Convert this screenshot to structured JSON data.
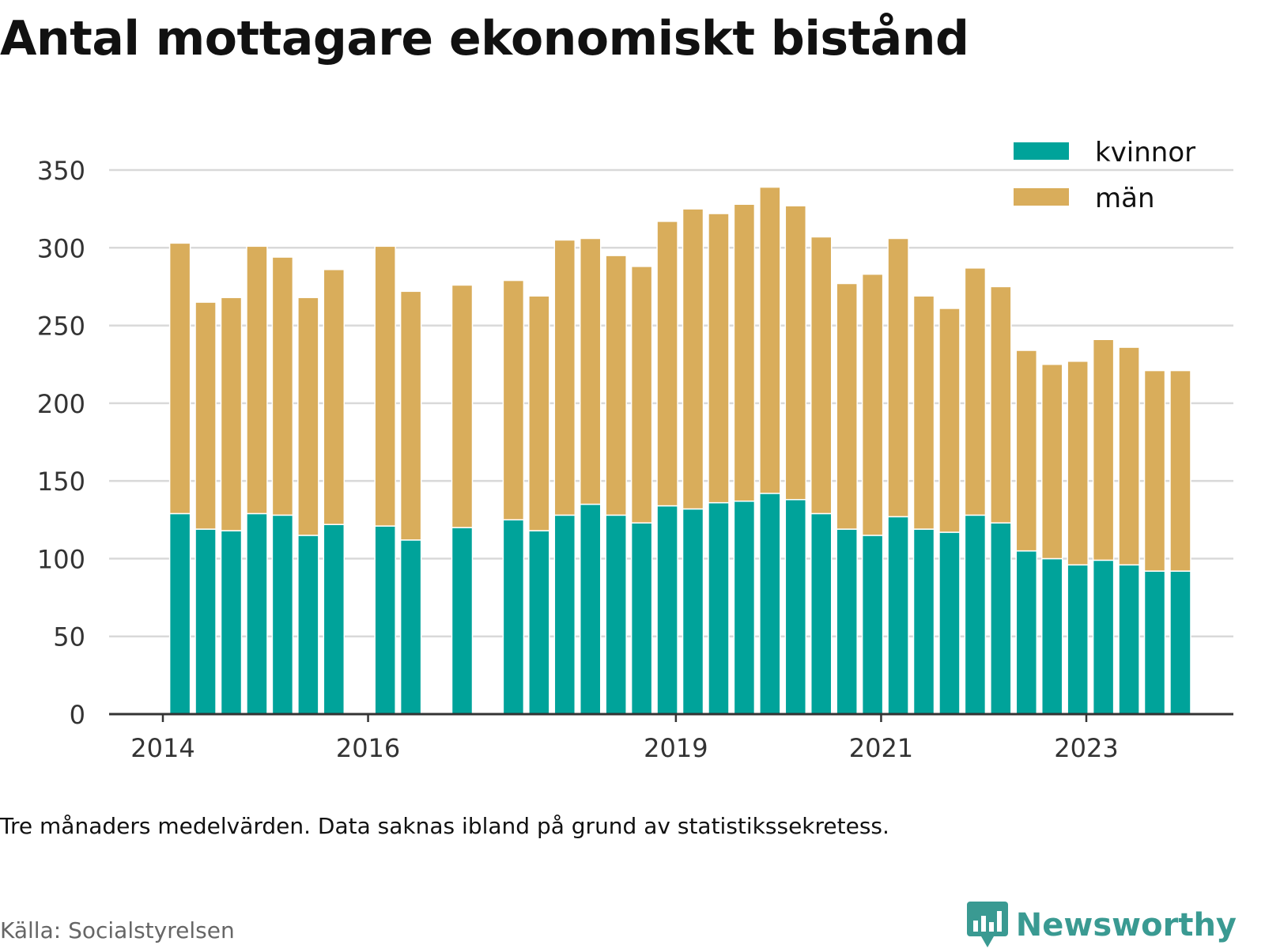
{
  "title": "Antal mottagare ekonomiskt bistånd",
  "note": "Tre månaders medelvärden. Data saknas ibland på grund av statistikssekretess.",
  "source": "Källa: Socialstyrelsen",
  "brand": "Newsworthy",
  "brand_icon": "newsworthy-chart-bubble-icon",
  "colors": {
    "kvinnor": "#00a39a",
    "man": "#d9ad5b",
    "grid": "#d9d9d9",
    "axis": "#333333",
    "brand": "#3a9a92"
  },
  "chart_data": {
    "type": "bar",
    "stacked": true,
    "title": "Antal mottagare ekonomiskt bistånd",
    "ylim": [
      0,
      350
    ],
    "yticks": [
      0,
      50,
      100,
      150,
      200,
      250,
      300,
      350
    ],
    "xticks": [
      {
        "label": "2014",
        "x": "2014-01"
      },
      {
        "label": "2016",
        "x": "2016-01"
      },
      {
        "label": "2019",
        "x": "2019-01"
      },
      {
        "label": "2021",
        "x": "2021-01"
      },
      {
        "label": "2023",
        "x": "2023-01"
      }
    ],
    "x_range": [
      "2013-07",
      "2024-07"
    ],
    "grid": true,
    "legend": "top-right",
    "periods": [
      "2014-03",
      "2014-06",
      "2014-09",
      "2014-12",
      "2015-03",
      "2015-06",
      "2015-09",
      "2016-03",
      "2016-06",
      "2016-12",
      "2017-06",
      "2017-09",
      "2017-12",
      "2018-03",
      "2018-06",
      "2018-09",
      "2018-12",
      "2019-03",
      "2019-06",
      "2019-09",
      "2019-12",
      "2020-03",
      "2020-06",
      "2020-09",
      "2020-12",
      "2021-03",
      "2021-06",
      "2021-09",
      "2021-12",
      "2022-03",
      "2022-06",
      "2022-09",
      "2022-12",
      "2023-03",
      "2023-06",
      "2023-09",
      "2023-12"
    ],
    "series": [
      {
        "name": "kvinnor",
        "values": [
          129,
          119,
          118,
          129,
          128,
          115,
          122,
          121,
          112,
          120,
          125,
          118,
          128,
          135,
          128,
          123,
          134,
          132,
          136,
          137,
          142,
          138,
          129,
          119,
          115,
          127,
          119,
          117,
          128,
          123,
          105,
          100,
          96,
          99,
          96,
          92,
          92
        ]
      },
      {
        "name": "män",
        "values": [
          174,
          146,
          150,
          172,
          166,
          153,
          164,
          180,
          160,
          156,
          154,
          151,
          177,
          171,
          167,
          165,
          183,
          193,
          186,
          191,
          197,
          189,
          178,
          158,
          168,
          179,
          150,
          144,
          159,
          152,
          129,
          125,
          131,
          142,
          140,
          129,
          129
        ]
      }
    ]
  }
}
